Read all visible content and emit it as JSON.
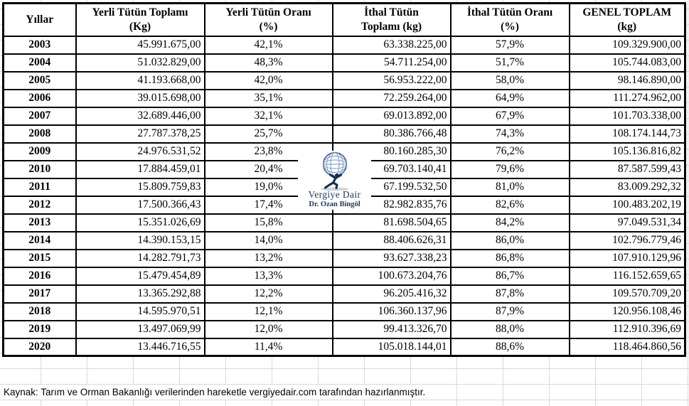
{
  "colors": {
    "table_border": "#000000",
    "gridline": "#d9d9d9",
    "cell_background": "#ffffff",
    "watermark_text": "#1f3864",
    "globe_stroke": "#3d5e92"
  },
  "table": {
    "columns": [
      {
        "id": "yillar",
        "label": "Yıllar"
      },
      {
        "id": "yerli_tutun_toplami",
        "label": "Yerli Tütün Toplamı\n(Kg)"
      },
      {
        "id": "yerli_tutun_orani",
        "label": "Yerli Tütün Oranı\n(%)"
      },
      {
        "id": "ithal_tutun_toplami",
        "label": "İthal Tütün\nToplamı (kg)"
      },
      {
        "id": "ithal_tutun_orani",
        "label": "İthal Tütün Oranı\n(%)"
      },
      {
        "id": "genel_toplam",
        "label": "GENEL TOPLAM\n(kg)"
      }
    ],
    "rows": [
      {
        "year": "2003",
        "yerli_toplam": "45.991.675,00",
        "yerli_oran": "42,1%",
        "ithal_toplam": "63.338.225,00",
        "ithal_oran": "57,9%",
        "genel_toplam": "109.329.900,00"
      },
      {
        "year": "2004",
        "yerli_toplam": "51.032.829,00",
        "yerli_oran": "48,3%",
        "ithal_toplam": "54.711.254,00",
        "ithal_oran": "51,7%",
        "genel_toplam": "105.744.083,00"
      },
      {
        "year": "2005",
        "yerli_toplam": "41.193.668,00",
        "yerli_oran": "42,0%",
        "ithal_toplam": "56.953.222,00",
        "ithal_oran": "58,0%",
        "genel_toplam": "98.146.890,00"
      },
      {
        "year": "2006",
        "yerli_toplam": "39.015.698,00",
        "yerli_oran": "35,1%",
        "ithal_toplam": "72.259.264,00",
        "ithal_oran": "64,9%",
        "genel_toplam": "111.274.962,00"
      },
      {
        "year": "2007",
        "yerli_toplam": "32.689.446,00",
        "yerli_oran": "32,1%",
        "ithal_toplam": "69.013.892,00",
        "ithal_oran": "67,9%",
        "genel_toplam": "101.703.338,00"
      },
      {
        "year": "2008",
        "yerli_toplam": "27.787.378,25",
        "yerli_oran": "25,7%",
        "ithal_toplam": "80.386.766,48",
        "ithal_oran": "74,3%",
        "genel_toplam": "108.174.144,73"
      },
      {
        "year": "2009",
        "yerli_toplam": "24.976.531,52",
        "yerli_oran": "23,8%",
        "ithal_toplam": "80.160.285,30",
        "ithal_oran": "76,2%",
        "genel_toplam": "105.136.816,82"
      },
      {
        "year": "2010",
        "yerli_toplam": "17.884.459,01",
        "yerli_oran": "20,4%",
        "ithal_toplam": "69.703.140,41",
        "ithal_oran": "79,6%",
        "genel_toplam": "87.587.599,43"
      },
      {
        "year": "2011",
        "yerli_toplam": "15.809.759,83",
        "yerli_oran": "19,0%",
        "ithal_toplam": "67.199.532,50",
        "ithal_oran": "81,0%",
        "genel_toplam": "83.009.292,32"
      },
      {
        "year": "2012",
        "yerli_toplam": "17.500.366,43",
        "yerli_oran": "17,4%",
        "ithal_toplam": "82.982.835,76",
        "ithal_oran": "82,6%",
        "genel_toplam": "100.483.202,19"
      },
      {
        "year": "2013",
        "yerli_toplam": "15.351.026,69",
        "yerli_oran": "15,8%",
        "ithal_toplam": "81.698.504,65",
        "ithal_oran": "84,2%",
        "genel_toplam": "97.049.531,34"
      },
      {
        "year": "2014",
        "yerli_toplam": "14.390.153,15",
        "yerli_oran": "14,0%",
        "ithal_toplam": "88.406.626,31",
        "ithal_oran": "86,0%",
        "genel_toplam": "102.796.779,46"
      },
      {
        "year": "2015",
        "yerli_toplam": "14.282.791,73",
        "yerli_oran": "13,2%",
        "ithal_toplam": "93.627.338,23",
        "ithal_oran": "86,8%",
        "genel_toplam": "107.910.129,96"
      },
      {
        "year": "2016",
        "yerli_toplam": "15.479.454,89",
        "yerli_oran": "13,3%",
        "ithal_toplam": "100.673.204,76",
        "ithal_oran": "86,7%",
        "genel_toplam": "116.152.659,65"
      },
      {
        "year": "2017",
        "yerli_toplam": "13.365.292,88",
        "yerli_oran": "12,2%",
        "ithal_toplam": "96.205.416,32",
        "ithal_oran": "87,8%",
        "genel_toplam": "109.570.709,20"
      },
      {
        "year": "2018",
        "yerli_toplam": "14.595.970,51",
        "yerli_oran": "12,1%",
        "ithal_toplam": "106.360.137,96",
        "ithal_oran": "87,9%",
        "genel_toplam": "120.956.108,46"
      },
      {
        "year": "2019",
        "yerli_toplam": "13.497.069,99",
        "yerli_oran": "12,0%",
        "ithal_toplam": "99.413.326,70",
        "ithal_oran": "88,0%",
        "genel_toplam": "112.910.396,69"
      },
      {
        "year": "2020",
        "yerli_toplam": "13.446.716,55",
        "yerli_oran": "11,4%",
        "ithal_toplam": "105.018.144,01",
        "ithal_oran": "88,6%",
        "genel_toplam": "118.464.860,56"
      }
    ]
  },
  "watermark": {
    "title": "Vergiye Dair",
    "subtitle": "Dr. Ozan Bingöl",
    "icon": "atlas-carrying-globe"
  },
  "footer": {
    "source_note": "Kaynak: Tarım ve Orman Bakanlığı verilerinden hareketle vergiyedair.com tarafından hazırlanmıştır."
  }
}
